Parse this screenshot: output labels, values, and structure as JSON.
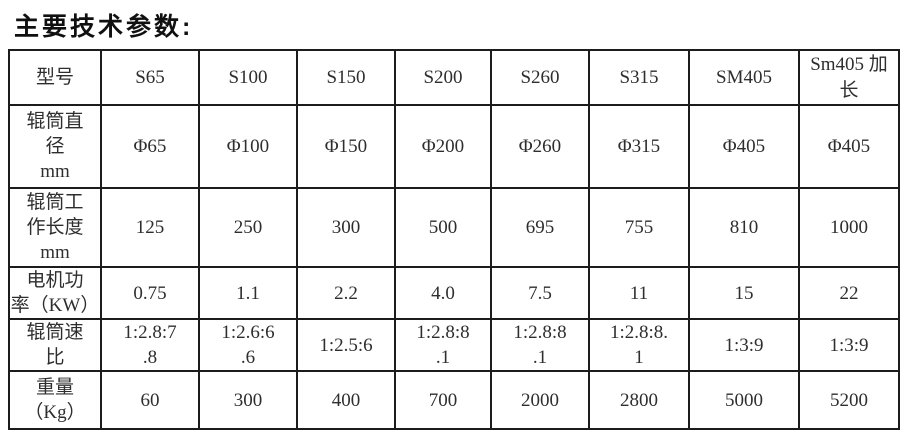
{
  "title": "主要技术参数:",
  "table": {
    "columns": [
      "型号",
      "S65",
      "S100",
      "S150",
      "S200",
      "S260",
      "S315",
      "SM405",
      "Sm405 加\n长"
    ],
    "rows": [
      {
        "label": "辊筒直\n径\nmm",
        "values": [
          "Φ65",
          "Φ100",
          "Φ150",
          "Φ200",
          "Φ260",
          "Φ315",
          "Φ405",
          "Φ405"
        ]
      },
      {
        "label": "辊筒工\n作长度\nmm",
        "values": [
          "125",
          "250",
          "300",
          "500",
          "695",
          "755",
          "810",
          "1000"
        ]
      },
      {
        "label": "电机功\n率（KW）",
        "values": [
          "0.75",
          "1.1",
          "2.2",
          "4.0",
          "7.5",
          "11",
          "15",
          "22"
        ]
      },
      {
        "label": "辊筒速\n比",
        "values": [
          "1:2.8:7\n.8",
          "1:2.6:6\n.6",
          "1:2.5:6",
          "1:2.8:8\n.1",
          "1:2.8:8\n.1",
          "1:2.8:8.\n1",
          "1:3:9",
          "1:3:9"
        ]
      },
      {
        "label": "重量\n（Kg）",
        "values": [
          "60",
          "300",
          "400",
          "700",
          "2000",
          "2800",
          "5000",
          "5200"
        ]
      }
    ]
  }
}
